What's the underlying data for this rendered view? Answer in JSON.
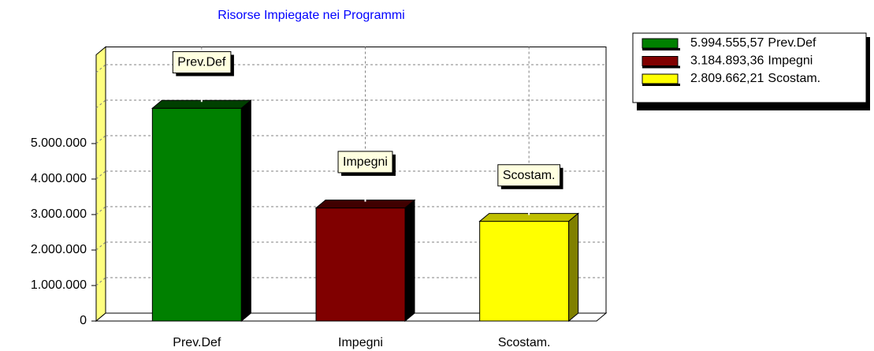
{
  "chart_data": {
    "type": "bar3d",
    "title": "Risorse Impiegate nei Programmi",
    "categories": [
      "Prev.Def",
      "Impegni",
      "Scostam."
    ],
    "values": [
      5994555.57,
      3184893.36,
      2809662.21
    ],
    "value_labels": [
      "5.994.555,57",
      "3.184.893,36",
      "2.809.662,21"
    ],
    "colors": [
      "#008000",
      "#800000",
      "#ffff00"
    ],
    "ylim": [
      0,
      7500000
    ],
    "yticks": [
      0,
      {
        "value": 1000000,
        "label": "1.000.000"
      },
      {
        "value": 2000000,
        "label": "2.000.000"
      },
      {
        "value": 3000000,
        "label": "3.000.000"
      },
      {
        "value": 4000000,
        "label": "4.000.000"
      },
      {
        "value": 5000000,
        "label": "5.000.000"
      }
    ],
    "grid_lines": [
      1000000,
      2000000,
      3000000,
      4000000,
      5000000,
      6000000,
      7000000
    ],
    "grid": true,
    "legend": "top-right"
  }
}
